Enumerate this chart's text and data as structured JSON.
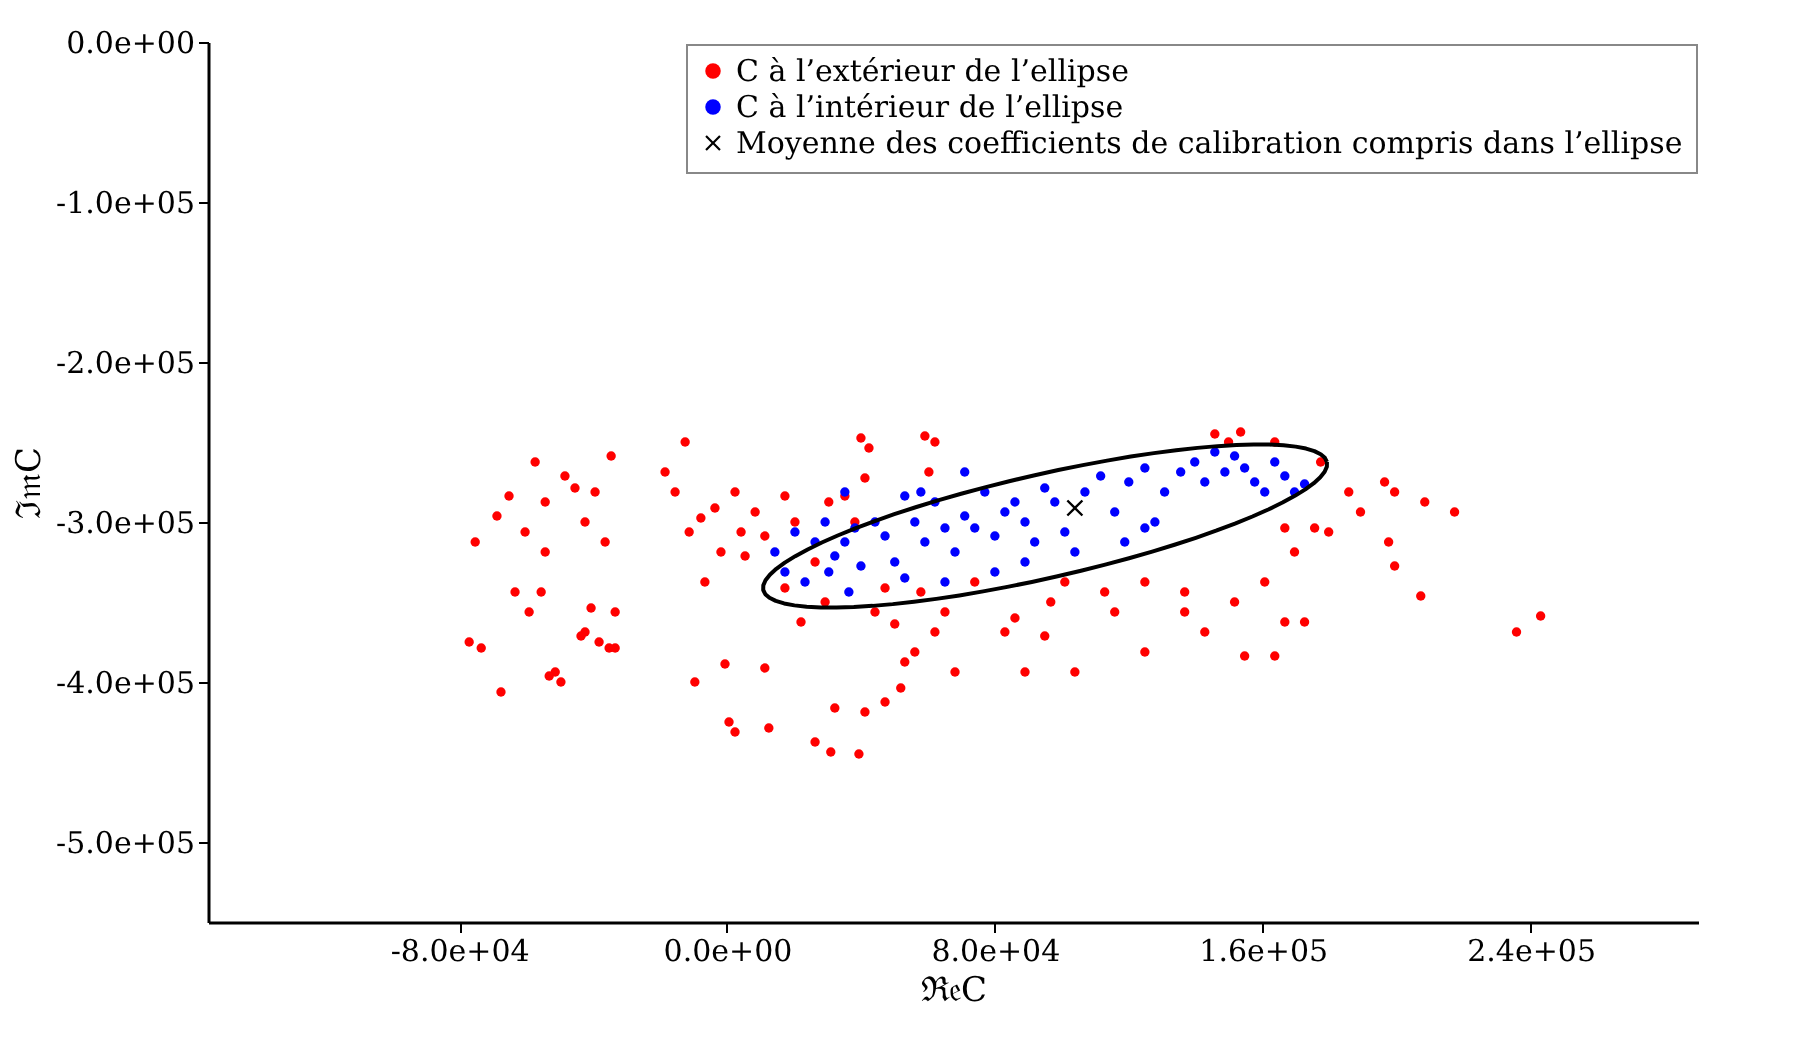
{
  "chart_data": {
    "type": "scatter",
    "xlabel": "ℜ𝔢C",
    "ylabel": "ℑ𝔪C",
    "xlim": [
      -155000,
      290000
    ],
    "ylim": [
      -550000,
      0
    ],
    "xticks": [
      {
        "value": -80000,
        "label": "-8.0e+04"
      },
      {
        "value": 0,
        "label": "0.0e+00"
      },
      {
        "value": 80000,
        "label": "8.0e+04"
      },
      {
        "value": 160000,
        "label": "1.6e+05"
      },
      {
        "value": 240000,
        "label": "2.4e+05"
      }
    ],
    "yticks": [
      {
        "value": 0,
        "label": "0.0e+00"
      },
      {
        "value": -100000,
        "label": "-1.0e+05"
      },
      {
        "value": -200000,
        "label": "-2.0e+05"
      },
      {
        "value": -300000,
        "label": "-3.0e+05"
      },
      {
        "value": -400000,
        "label": "-4.0e+05"
      },
      {
        "value": -500000,
        "label": "-5.0e+05"
      }
    ],
    "grid": false,
    "legend": "top right",
    "series": [
      {
        "name": "C à l’extérieur de l’ellipse",
        "color": "#ff0000",
        "marker": "circle",
        "x": [
          -75200,
          -77000,
          -73400,
          -68700,
          -65100,
          -63300,
          -60300,
          -57300,
          -54300,
          -55500,
          -51300,
          -49600,
          -54300,
          -59100,
          -48400,
          -45400,
          -42400,
          -39400,
          -36400,
          -34600,
          -42400,
          -40600,
          -38200,
          -35200,
          -33400,
          -33400,
          -67500,
          -53100,
          -43600,
          -18500,
          -12500,
          -15500,
          -11300,
          -7800,
          -6600,
          -3600,
          -1800,
          -600,
          -9600,
          600,
          2400,
          11300,
          12500,
          2400,
          4200,
          5400,
          11300,
          8400,
          17300,
          20300,
          17300,
          22100,
          26300,
          29300,
          30400,
          35200,
          38200,
          40000,
          41200,
          42400,
          44200,
          47200,
          50100,
          51900,
          53100,
          56100,
          59100,
          60300,
          57900,
          62100,
          65100,
          62100,
          68100,
          47200,
          41200,
          32200,
          26300,
          31000,
          39400,
          83000,
          86000,
          94900,
          96700,
          89000,
          103900,
          115800,
          124800,
          136700,
          142700,
          151600,
          145700,
          149800,
          153400,
          163600,
          166600,
          175500,
          179700,
          185700,
          189200,
          196400,
          199400,
          197600,
          199400,
          208400,
          217300,
          207200,
          235800,
          243000,
          166600,
          172500,
          163600,
          154600,
          112800,
          124800,
          136700,
          160600,
          169500,
          177300,
          74000,
          100900
        ],
        "values": [
          -312500,
          -375000,
          -378750,
          -296250,
          -283750,
          -343750,
          -306250,
          -262500,
          -287500,
          -343750,
          -393750,
          -400000,
          -318750,
          -356250,
          -271250,
          -278750,
          -300000,
          -281250,
          -312500,
          -258750,
          -368750,
          -353750,
          -375000,
          -378750,
          -378750,
          -356250,
          -406250,
          -396250,
          -371250,
          -268750,
          -250000,
          -281250,
          -306250,
          -297500,
          -337500,
          -291250,
          -318750,
          -388750,
          -400000,
          -425000,
          -431250,
          -391250,
          -428750,
          -281250,
          -306250,
          -321250,
          -308750,
          -293750,
          -283750,
          -300000,
          -341250,
          -362500,
          -325000,
          -350000,
          -287500,
          -283750,
          -300000,
          -247500,
          -272500,
          -253750,
          -356250,
          -341250,
          -363750,
          -403750,
          -387500,
          -381250,
          -246250,
          -268750,
          -343750,
          -250000,
          -356250,
          -368750,
          -393750,
          -412500,
          -418750,
          -416250,
          -437500,
          -443750,
          -445000,
          -368750,
          -360000,
          -371250,
          -350000,
          -393750,
          -393750,
          -356250,
          -381250,
          -356250,
          -368750,
          -350000,
          -245000,
          -250000,
          -243750,
          -250000,
          -303750,
          -303750,
          -306250,
          -281250,
          -293750,
          -275000,
          -281250,
          -312500,
          -327500,
          -287500,
          -293750,
          -346250,
          -368750,
          -358750,
          -362500,
          -362500,
          -383750,
          -383750,
          -343750,
          -337500,
          -343750,
          -337500,
          -318750,
          -262500,
          -337500,
          -337500
        ]
      },
      {
        "name": "C à l’intérieur de l’ellipse",
        "color": "#0000ff",
        "marker": "circle",
        "x": [
          14300,
          17300,
          20300,
          23300,
          26300,
          29300,
          30400,
          32200,
          35200,
          36400,
          38200,
          40000,
          44200,
          47200,
          50100,
          53100,
          56100,
          59100,
          57900,
          62100,
          65100,
          68100,
          71000,
          74000,
          77000,
          80000,
          83000,
          86000,
          89000,
          91900,
          94900,
          97900,
          100900,
          106900,
          111600,
          115800,
          120000,
          124800,
          127800,
          130700,
          135500,
          139700,
          142700,
          145700,
          148700,
          151600,
          154600,
          157600,
          160600,
          163600,
          166600,
          169500,
          172500,
          89000,
          80000,
          53100,
          65100,
          35200,
          71000,
          118800,
          103900,
          124800
        ],
        "values": [
          -318750,
          -331250,
          -306250,
          -337500,
          -312500,
          -300000,
          -331250,
          -321250,
          -312500,
          -343750,
          -303750,
          -327500,
          -300000,
          -308750,
          -325000,
          -283750,
          -300000,
          -312500,
          -281250,
          -287500,
          -303750,
          -318750,
          -296250,
          -303750,
          -281250,
          -308750,
          -293750,
          -287500,
          -300000,
          -312500,
          -278750,
          -287500,
          -306250,
          -281250,
          -271250,
          -293750,
          -275000,
          -266250,
          -300000,
          -281250,
          -268750,
          -262500,
          -275000,
          -256250,
          -268750,
          -258750,
          -266250,
          -275000,
          -281250,
          -262500,
          -271250,
          -281250,
          -276250,
          -325000,
          -331250,
          -335000,
          -337500,
          -281250,
          -268750,
          -312500,
          -318750,
          -303750
        ]
      },
      {
        "name": "Moyenne des coefficients de calibration compris dans l’ellipse",
        "color": "#000000",
        "marker": "cross",
        "x": [
          103900
        ],
        "values": [
          -291250
        ]
      }
    ]
  }
}
